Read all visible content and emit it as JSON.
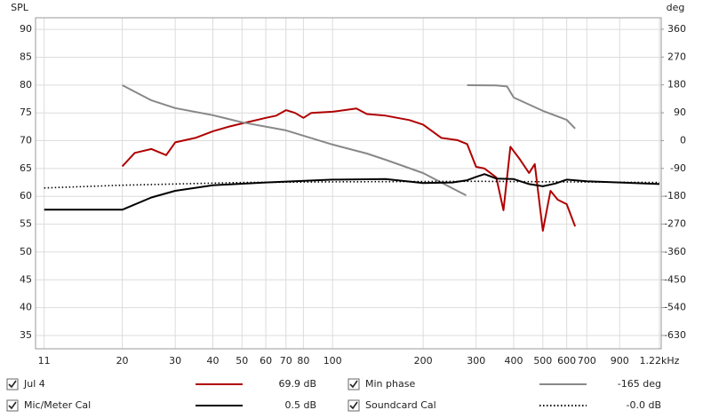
{
  "chart_data": {
    "type": "line",
    "ylabel": "SPL",
    "y2label": "deg",
    "xscale": "log",
    "grid": true,
    "xlim": [
      10.3,
      1237
    ],
    "xticks": [
      11,
      20,
      30,
      40,
      50,
      60,
      70,
      80,
      100,
      200,
      300,
      400,
      500,
      600,
      700,
      900,
      {
        "value": 1220,
        "label": "1.22kHz"
      }
    ],
    "ylim": [
      32.6,
      92.1
    ],
    "yticks": [
      35,
      40,
      45,
      50,
      55,
      60,
      65,
      70,
      75,
      80,
      85,
      90
    ],
    "y2lim": [
      -673,
      397
    ],
    "y2ticks": [
      -630,
      -540,
      -450,
      -360,
      -270,
      -180,
      -90,
      0,
      90,
      180,
      270,
      360
    ],
    "series": [
      {
        "name": "Jul 4",
        "color": "#b00000",
        "readout": "69.9 dB",
        "x": [
          20,
          22,
          25,
          28,
          30,
          35,
          40,
          45,
          50,
          60,
          65,
          70,
          75,
          80,
          85,
          100,
          120,
          130,
          150,
          180,
          200,
          230,
          260,
          280,
          300,
          320,
          350,
          370,
          390,
          420,
          450,
          470,
          500,
          530,
          560,
          600,
          640
        ],
        "values": [
          65.4,
          67.8,
          68.5,
          67.4,
          69.7,
          70.5,
          71.7,
          72.5,
          73.1,
          74.1,
          74.5,
          75.5,
          75.0,
          74.1,
          75.0,
          75.2,
          75.8,
          74.8,
          74.5,
          73.7,
          72.9,
          70.5,
          70.1,
          69.4,
          65.3,
          65.0,
          63.4,
          57.5,
          68.9,
          66.6,
          64.2,
          65.8,
          53.8,
          61.0,
          59.4,
          58.6,
          54.6
        ]
      },
      {
        "name": "Min phase",
        "color": "#888888",
        "readout": "-165 deg",
        "axis": "y2",
        "x": [
          20,
          25,
          30,
          40,
          50,
          70,
          100,
          130,
          150,
          200,
          250,
          278,
          279,
          280,
          350,
          380,
          400,
          500,
          600,
          640
        ],
        "values": [
          179,
          130,
          105,
          82,
          59,
          33,
          -13,
          -42,
          -62,
          -105,
          -154,
          -177,
          null,
          179,
          178,
          175,
          139,
          96,
          67,
          39
        ]
      },
      {
        "name": "Mic/Meter Cal",
        "color": "#000000",
        "readout": "0.5 dB",
        "x": [
          11,
          20,
          25,
          30,
          40,
          60,
          100,
          150,
          200,
          250,
          280,
          300,
          320,
          350,
          400,
          450,
          500,
          550,
          600,
          700,
          900,
          1220
        ],
        "values": [
          57.6,
          57.6,
          59.8,
          61.0,
          62.0,
          62.5,
          63.0,
          63.1,
          62.4,
          62.5,
          62.9,
          63.5,
          64.0,
          63.2,
          63.1,
          62.2,
          61.8,
          62.3,
          63.0,
          62.7,
          62.5,
          62.2
        ]
      },
      {
        "name": "Soundcard Cal",
        "color": "#000000",
        "readout": "-0.0 dB",
        "dash": "dotted",
        "x": [
          11,
          20,
          50,
          100,
          300,
          1220
        ],
        "values": [
          61.5,
          62.0,
          62.5,
          62.6,
          62.7,
          62.5
        ]
      }
    ]
  }
}
